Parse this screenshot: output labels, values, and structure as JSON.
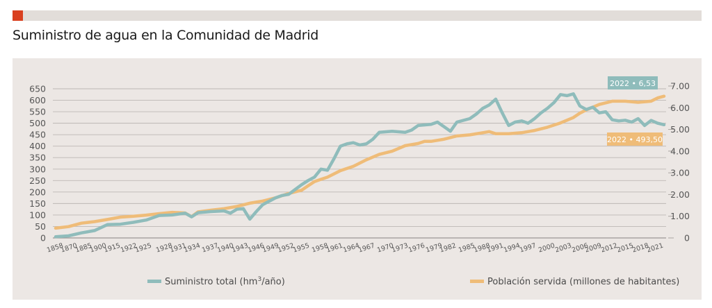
{
  "chart_data": {
    "type": "line",
    "title": "Suministro de agua en la Comunidad de Madrid",
    "xlabel": "",
    "ylabel_left": "",
    "ylabel_right": "",
    "x_tick_labels": [
      "1858",
      "1870",
      "1885",
      "1900",
      "1915",
      "1922",
      "1925",
      "1928",
      "1931",
      "1934",
      "1937",
      "1940",
      "1943",
      "1946",
      "1949",
      "1952",
      "1955",
      "1958",
      "1961",
      "1964",
      "1967",
      "1970",
      "1973",
      "1976",
      "1979",
      "1982",
      "1985",
      "1988",
      "1991",
      "1994",
      "1997",
      "2000",
      "2003",
      "2006",
      "2009",
      "2012",
      "2015",
      "2018",
      "2021"
    ],
    "y_left": {
      "ticks": [
        "0",
        "50",
        "100",
        "150",
        "200",
        "250",
        "300",
        "350",
        "400",
        "450",
        "500",
        "550",
        "600",
        "650"
      ],
      "range": [
        0,
        650
      ]
    },
    "y_right": {
      "ticks": [
        "0",
        "1.00",
        "2.00",
        "3.00",
        "4.00",
        "5.00",
        "6.00",
        "7.00"
      ],
      "range": [
        0,
        7
      ]
    },
    "grid": true,
    "legend_position": "bottom",
    "series": [
      {
        "name": "Suministro total (hm³/año)",
        "axis": "left",
        "color": "#8fbcbb",
        "points": [
          [
            0,
            5
          ],
          [
            1,
            9
          ],
          [
            2,
            22
          ],
          [
            3,
            32
          ],
          [
            4,
            58
          ],
          [
            5,
            60
          ],
          [
            6,
            68
          ],
          [
            7,
            78
          ],
          [
            8,
            98
          ],
          [
            9,
            100
          ],
          [
            10,
            108
          ],
          [
            10.5,
            92
          ],
          [
            11,
            110
          ],
          [
            12,
            115
          ],
          [
            13,
            118
          ],
          [
            13.5,
            108
          ],
          [
            14,
            125
          ],
          [
            14.5,
            128
          ],
          [
            15,
            82
          ],
          [
            15.5,
            115
          ],
          [
            16,
            145
          ],
          [
            17,
            175
          ],
          [
            17.5,
            185
          ],
          [
            18,
            190
          ],
          [
            19,
            232
          ],
          [
            19.5,
            250
          ],
          [
            20,
            265
          ],
          [
            20.5,
            300
          ],
          [
            21,
            295
          ],
          [
            21.5,
            345
          ],
          [
            22,
            400
          ],
          [
            22.5,
            410
          ],
          [
            23,
            415
          ],
          [
            23.5,
            405
          ],
          [
            24,
            410
          ],
          [
            24.5,
            430
          ],
          [
            25,
            460
          ],
          [
            26,
            465
          ],
          [
            27,
            460
          ],
          [
            27.5,
            470
          ],
          [
            28,
            490
          ],
          [
            29,
            495
          ],
          [
            29.5,
            505
          ],
          [
            30,
            485
          ],
          [
            30.5,
            465
          ],
          [
            31,
            505
          ],
          [
            32,
            520
          ],
          [
            32.5,
            540
          ],
          [
            33,
            565
          ],
          [
            33.5,
            580
          ],
          [
            34,
            605
          ],
          [
            34.5,
            545
          ],
          [
            35,
            490
          ],
          [
            35.5,
            505
          ],
          [
            36,
            510
          ],
          [
            36.5,
            500
          ],
          [
            37,
            520
          ],
          [
            37.5,
            545
          ],
          [
            38,
            565
          ],
          [
            38.5,
            590
          ],
          [
            39,
            625
          ],
          [
            39.5,
            620
          ],
          [
            40,
            628
          ],
          [
            40.5,
            575
          ],
          [
            41,
            560
          ],
          [
            41.5,
            570
          ],
          [
            42,
            545
          ],
          [
            42.5,
            550
          ],
          [
            43,
            515
          ],
          [
            43.5,
            510
          ],
          [
            44,
            513
          ],
          [
            44.5,
            505
          ],
          [
            45,
            520
          ],
          [
            45.5,
            490
          ],
          [
            46,
            512
          ],
          [
            46.5,
            500
          ],
          [
            47,
            493.5
          ]
        ]
      },
      {
        "name": "Población servida (millones de habitantes)",
        "axis": "right",
        "color": "#efbc78",
        "points": [
          [
            0,
            0.45
          ],
          [
            1,
            0.52
          ],
          [
            2,
            0.68
          ],
          [
            3,
            0.75
          ],
          [
            4,
            0.85
          ],
          [
            5,
            0.96
          ],
          [
            6,
            1.0
          ],
          [
            7,
            1.05
          ],
          [
            8,
            1.12
          ],
          [
            9,
            1.18
          ],
          [
            10,
            1.15
          ],
          [
            10.5,
            0.98
          ],
          [
            11,
            1.2
          ],
          [
            12,
            1.28
          ],
          [
            13,
            1.35
          ],
          [
            14,
            1.45
          ],
          [
            15,
            1.6
          ],
          [
            16,
            1.7
          ],
          [
            17,
            1.85
          ],
          [
            18,
            2.05
          ],
          [
            19,
            2.2
          ],
          [
            19.5,
            2.4
          ],
          [
            20,
            2.6
          ],
          [
            20.5,
            2.7
          ],
          [
            21,
            2.8
          ],
          [
            22,
            3.1
          ],
          [
            23,
            3.3
          ],
          [
            24,
            3.6
          ],
          [
            25,
            3.85
          ],
          [
            26,
            4.0
          ],
          [
            27,
            4.25
          ],
          [
            28,
            4.35
          ],
          [
            28.5,
            4.45
          ],
          [
            29,
            4.45
          ],
          [
            30,
            4.55
          ],
          [
            31,
            4.7
          ],
          [
            32,
            4.75
          ],
          [
            33,
            4.85
          ],
          [
            33.5,
            4.9
          ],
          [
            34,
            4.8
          ],
          [
            35,
            4.8
          ],
          [
            36,
            4.85
          ],
          [
            37,
            4.95
          ],
          [
            38,
            5.1
          ],
          [
            39,
            5.3
          ],
          [
            40,
            5.55
          ],
          [
            40.5,
            5.75
          ],
          [
            41,
            5.9
          ],
          [
            42,
            6.15
          ],
          [
            43,
            6.3
          ],
          [
            44,
            6.3
          ],
          [
            45,
            6.25
          ],
          [
            46,
            6.3
          ],
          [
            46.5,
            6.45
          ],
          [
            47,
            6.53
          ]
        ]
      }
    ],
    "annotations": [
      {
        "text": "2022 • 6,53",
        "color": "#8fbcbb"
      },
      {
        "text": "2022 • 493,50",
        "color": "#efbc78"
      }
    ]
  },
  "header": {
    "accent_color": "#d9401f",
    "title": "Suministro de agua en la Comunidad de Madrid"
  },
  "legend": {
    "item1_label": "Suministro total (hm",
    "item1_sup": "3",
    "item1_suffix": "/año)",
    "item2_label": "Población servida (millones de habitantes)"
  }
}
